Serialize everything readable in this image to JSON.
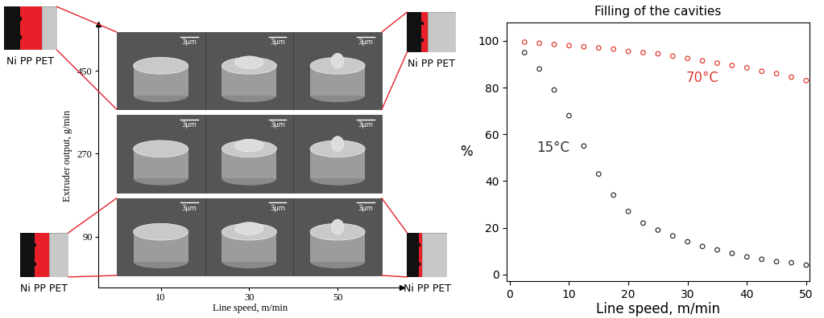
{
  "chart_data": [
    {
      "type": "image_grid",
      "x_label": "Line speed, m/min",
      "y_label": "Extruder output, g/min",
      "x": [
        10,
        30,
        50
      ],
      "y": [
        90,
        270,
        450
      ],
      "scale_bar": "3μm",
      "layers": "Ni PP PET"
    },
    {
      "type": "scatter",
      "title": "Filling of the cavities",
      "x_label": "Line speed, m/min",
      "y_label": "%",
      "x": [
        2.5,
        5,
        7.5,
        10,
        12.5,
        15,
        17.5,
        20,
        22.5,
        25,
        27.5,
        30,
        32.5,
        35,
        37.5,
        40,
        42.5,
        45,
        47.5,
        50
      ],
      "series": [
        {
          "name": "70°C",
          "color": "#e03c31",
          "marker": "circle",
          "values": [
            99.5,
            99,
            98.5,
            98,
            97.5,
            97,
            96.5,
            95.5,
            95,
            94.5,
            93.5,
            92.5,
            91.5,
            90.5,
            89.5,
            88.5,
            87,
            86,
            84.5,
            83
          ]
        },
        {
          "name": "15°C",
          "color": "#303030",
          "marker": "circle",
          "values": [
            95,
            88,
            79,
            68,
            55,
            43,
            34,
            27,
            22,
            19,
            16.5,
            14,
            12,
            10.5,
            9,
            7.5,
            6.5,
            5.5,
            5,
            4
          ]
        }
      ],
      "xlim": [
        -0.5,
        50.5
      ],
      "ylim": [
        -3,
        108
      ],
      "xticks": [
        0,
        10,
        20,
        30,
        40,
        50
      ],
      "yticks": [
        0,
        20,
        40,
        60,
        80,
        100
      ],
      "grid": false
    }
  ]
}
